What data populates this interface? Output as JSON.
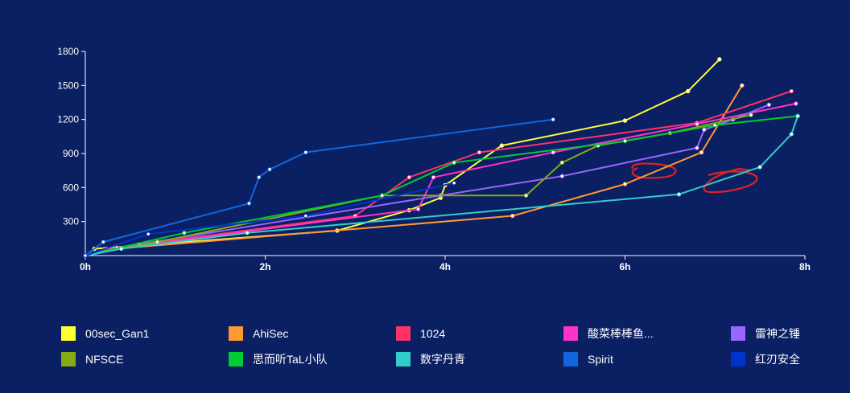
{
  "chart_data": {
    "type": "line",
    "title": "",
    "xlabel": "",
    "ylabel": "",
    "xlim": [
      0,
      8
    ],
    "ylim": [
      0,
      1800
    ],
    "x_ticks": [
      0,
      2,
      4,
      6,
      8
    ],
    "x_tick_labels": [
      "0h",
      "2h",
      "4h",
      "6h",
      "8h"
    ],
    "y_ticks": [
      300,
      600,
      900,
      1200,
      1500,
      1800
    ],
    "y_tick_labels": [
      "300",
      "600",
      "900",
      "1200",
      "1500",
      "1800"
    ],
    "grid": false,
    "legend_position": "bottom",
    "series": [
      {
        "name": "00sec_Gan1",
        "color": "#ffff33",
        "points": [
          [
            0,
            0
          ],
          [
            0.1,
            60
          ],
          [
            2.8,
            220
          ],
          [
            3.6,
            400
          ],
          [
            3.95,
            510
          ],
          [
            4.0,
            620
          ],
          [
            4.63,
            970
          ],
          [
            6.0,
            1190
          ],
          [
            6.7,
            1450
          ],
          [
            7.05,
            1730
          ]
        ]
      },
      {
        "name": "AhiSec",
        "color": "#ff9933",
        "points": [
          [
            0,
            0
          ],
          [
            0.2,
            50
          ],
          [
            4.75,
            350
          ],
          [
            6.0,
            630
          ],
          [
            6.85,
            910
          ],
          [
            7.3,
            1500
          ]
        ]
      },
      {
        "name": "1024",
        "color": "#ff3366",
        "points": [
          [
            0,
            0
          ],
          [
            0.35,
            70
          ],
          [
            3.0,
            350
          ],
          [
            3.6,
            690
          ],
          [
            4.38,
            910
          ],
          [
            6.8,
            1170
          ],
          [
            7.85,
            1450
          ]
        ]
      },
      {
        "name": "酸菜棒棒鱼...",
        "color": "#ff33cc",
        "points": [
          [
            0,
            0
          ],
          [
            0.5,
            80
          ],
          [
            3.7,
            410
          ],
          [
            3.87,
            690
          ],
          [
            5.2,
            910
          ],
          [
            6.8,
            1160
          ],
          [
            7.9,
            1340
          ]
        ]
      },
      {
        "name": "雷神之锤",
        "color": "#9966ff",
        "points": [
          [
            0,
            0
          ],
          [
            0.6,
            100
          ],
          [
            3.95,
            530
          ],
          [
            5.3,
            700
          ],
          [
            6.8,
            950
          ],
          [
            6.88,
            1110
          ],
          [
            7.2,
            1200
          ],
          [
            7.6,
            1330
          ]
        ]
      },
      {
        "name": "NFSCE",
        "color": "#88aa11",
        "points": [
          [
            0,
            0
          ],
          [
            0.8,
            120
          ],
          [
            3.3,
            530
          ],
          [
            4.9,
            530
          ],
          [
            5.3,
            820
          ],
          [
            5.7,
            970
          ],
          [
            6.5,
            1080
          ],
          [
            7.4,
            1240
          ]
        ]
      },
      {
        "name": "思而听TaL小队",
        "color": "#00cc33",
        "points": [
          [
            0,
            0
          ],
          [
            1.1,
            200
          ],
          [
            3.3,
            530
          ],
          [
            4.1,
            820
          ],
          [
            6.0,
            1010
          ],
          [
            7.0,
            1150
          ],
          [
            7.92,
            1230
          ]
        ]
      },
      {
        "name": "数字丹青",
        "color": "#33cccc",
        "points": [
          [
            0,
            0
          ],
          [
            0.4,
            60
          ],
          [
            1.8,
            200
          ],
          [
            6.6,
            540
          ],
          [
            7.5,
            780
          ],
          [
            7.85,
            1070
          ],
          [
            7.92,
            1230
          ]
        ]
      },
      {
        "name": "Spirit",
        "color": "#1166dd",
        "points": [
          [
            0,
            0
          ],
          [
            0.2,
            120
          ],
          [
            1.82,
            460
          ],
          [
            1.93,
            690
          ],
          [
            2.05,
            760
          ],
          [
            2.45,
            910
          ],
          [
            5.2,
            1200
          ]
        ]
      },
      {
        "name": "红刃安全",
        "color": "#0033cc",
        "points": [
          [
            0,
            0
          ],
          [
            0.7,
            190
          ],
          [
            2.45,
            350
          ],
          [
            4.1,
            640
          ]
        ]
      }
    ]
  }
}
